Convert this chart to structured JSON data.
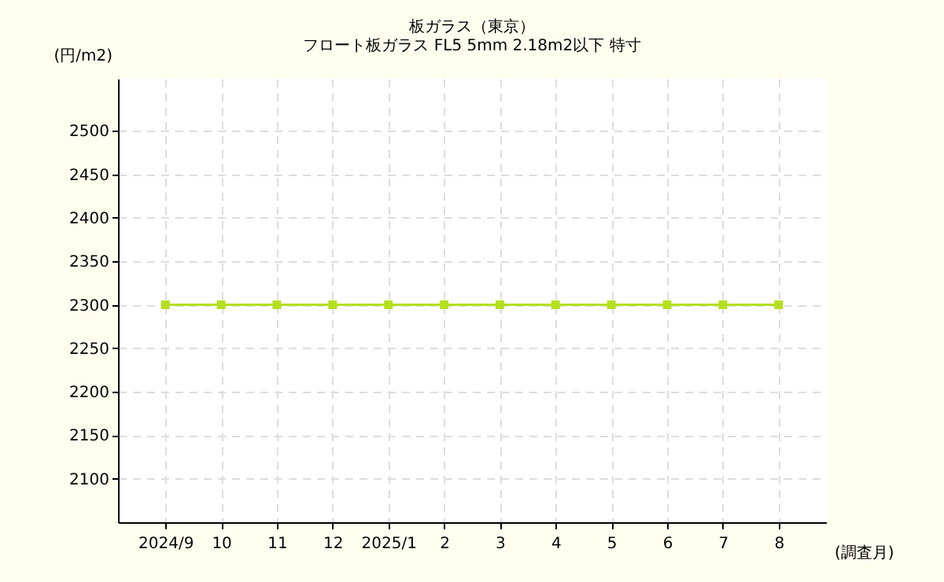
{
  "chart_data": {
    "type": "line",
    "title": "板ガラス（東京）",
    "subtitle": "フロート板ガラス FL5 5mm 2.18m2以下 特寸",
    "xlabel": "(調査月)",
    "ylabel": "(円/m2)",
    "categories": [
      "2024/9",
      "10",
      "11",
      "12",
      "2025/1",
      "2",
      "3",
      "4",
      "5",
      "6",
      "7",
      "8"
    ],
    "series": [
      {
        "color": "#b4e01e",
        "values": [
          2300,
          2300,
          2300,
          2300,
          2300,
          2300,
          2300,
          2300,
          2300,
          2300,
          2300,
          2300
        ]
      }
    ],
    "ylim": [
      2050,
      2560
    ],
    "yticks": [
      2100,
      2150,
      2200,
      2250,
      2300,
      2350,
      2400,
      2450,
      2500
    ],
    "grid": true,
    "marker": "square",
    "line_style": "solid"
  }
}
